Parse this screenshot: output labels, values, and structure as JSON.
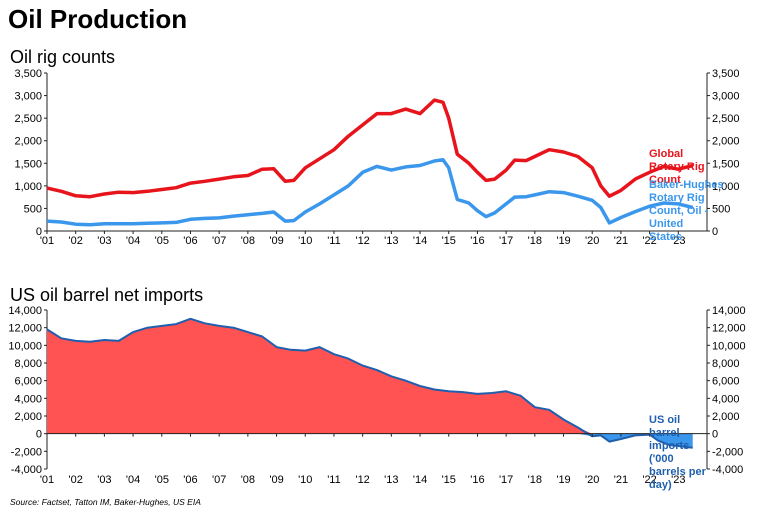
{
  "page": {
    "title": "Oil Production",
    "source": "Source: Factset, Tatton IM, Baker-Hughes, US EIA"
  },
  "chart_data": [
    {
      "type": "line",
      "title": "Oil rig counts",
      "x_tick_labels": [
        "'01",
        "'02",
        "'03",
        "'04",
        "'05",
        "'06",
        "'07",
        "'08",
        "'09",
        "'10",
        "'11",
        "'12",
        "'13",
        "'14",
        "'15",
        "'16",
        "'17",
        "'18",
        "'19",
        "'20",
        "'21",
        "'22",
        "'23"
      ],
      "ylim": [
        0,
        3500
      ],
      "y_ticks": [
        "0",
        "500",
        "1,000",
        "1,500",
        "2,000",
        "2,500",
        "3,000",
        "3,500"
      ],
      "grid": false,
      "legend": "right",
      "series": [
        {
          "name": "Global Rotary Rig Count",
          "color": "#e8141c",
          "points": [
            [
              2001.0,
              950
            ],
            [
              2001.5,
              880
            ],
            [
              2002.0,
              780
            ],
            [
              2002.5,
              760
            ],
            [
              2003.0,
              820
            ],
            [
              2003.5,
              860
            ],
            [
              2004.0,
              850
            ],
            [
              2004.5,
              880
            ],
            [
              2005.0,
              920
            ],
            [
              2005.5,
              960
            ],
            [
              2006.0,
              1060
            ],
            [
              2006.5,
              1100
            ],
            [
              2007.0,
              1150
            ],
            [
              2007.5,
              1200
            ],
            [
              2008.0,
              1230
            ],
            [
              2008.5,
              1370
            ],
            [
              2008.9,
              1380
            ],
            [
              2009.3,
              1100
            ],
            [
              2009.6,
              1120
            ],
            [
              2010.0,
              1400
            ],
            [
              2010.5,
              1600
            ],
            [
              2011.0,
              1800
            ],
            [
              2011.5,
              2100
            ],
            [
              2012.0,
              2350
            ],
            [
              2012.5,
              2600
            ],
            [
              2013.0,
              2600
            ],
            [
              2013.5,
              2700
            ],
            [
              2014.0,
              2600
            ],
            [
              2014.5,
              2900
            ],
            [
              2014.8,
              2850
            ],
            [
              2015.0,
              2500
            ],
            [
              2015.3,
              1700
            ],
            [
              2015.7,
              1500
            ],
            [
              2016.0,
              1300
            ],
            [
              2016.3,
              1120
            ],
            [
              2016.6,
              1150
            ],
            [
              2017.0,
              1350
            ],
            [
              2017.3,
              1570
            ],
            [
              2017.7,
              1560
            ],
            [
              2018.0,
              1650
            ],
            [
              2018.5,
              1800
            ],
            [
              2019.0,
              1750
            ],
            [
              2019.5,
              1650
            ],
            [
              2020.0,
              1400
            ],
            [
              2020.3,
              1000
            ],
            [
              2020.6,
              770
            ],
            [
              2021.0,
              900
            ],
            [
              2021.5,
              1150
            ],
            [
              2022.0,
              1300
            ],
            [
              2022.5,
              1430
            ],
            [
              2023.0,
              1370
            ],
            [
              2023.5,
              1450
            ]
          ]
        },
        {
          "name": "Baker-Hughes Rotary Rig Count, Oil - United States",
          "color": "#3a97ec",
          "points": [
            [
              2001.0,
              220
            ],
            [
              2001.5,
              200
            ],
            [
              2002.0,
              150
            ],
            [
              2002.5,
              140
            ],
            [
              2003.0,
              160
            ],
            [
              2003.5,
              160
            ],
            [
              2004.0,
              160
            ],
            [
              2004.5,
              170
            ],
            [
              2005.0,
              180
            ],
            [
              2005.5,
              190
            ],
            [
              2006.0,
              260
            ],
            [
              2006.5,
              280
            ],
            [
              2007.0,
              290
            ],
            [
              2007.5,
              330
            ],
            [
              2008.0,
              360
            ],
            [
              2008.5,
              390
            ],
            [
              2008.9,
              420
            ],
            [
              2009.3,
              220
            ],
            [
              2009.6,
              230
            ],
            [
              2010.0,
              420
            ],
            [
              2010.5,
              600
            ],
            [
              2011.0,
              800
            ],
            [
              2011.5,
              1000
            ],
            [
              2012.0,
              1300
            ],
            [
              2012.5,
              1430
            ],
            [
              2013.0,
              1350
            ],
            [
              2013.5,
              1420
            ],
            [
              2014.0,
              1450
            ],
            [
              2014.5,
              1550
            ],
            [
              2014.8,
              1580
            ],
            [
              2015.0,
              1400
            ],
            [
              2015.3,
              700
            ],
            [
              2015.7,
              620
            ],
            [
              2016.0,
              450
            ],
            [
              2016.3,
              320
            ],
            [
              2016.6,
              400
            ],
            [
              2017.0,
              600
            ],
            [
              2017.3,
              750
            ],
            [
              2017.7,
              760
            ],
            [
              2018.0,
              800
            ],
            [
              2018.5,
              870
            ],
            [
              2019.0,
              850
            ],
            [
              2019.5,
              770
            ],
            [
              2020.0,
              680
            ],
            [
              2020.3,
              520
            ],
            [
              2020.6,
              180
            ],
            [
              2021.0,
              300
            ],
            [
              2021.5,
              430
            ],
            [
              2022.0,
              550
            ],
            [
              2022.5,
              620
            ],
            [
              2023.0,
              600
            ],
            [
              2023.5,
              520
            ]
          ]
        }
      ]
    },
    {
      "type": "area",
      "title": "US oil barrel net imports",
      "x_tick_labels": [
        "'01",
        "'02",
        "'03",
        "'04",
        "'05",
        "'06",
        "'07",
        "'08",
        "'09",
        "'10",
        "'11",
        "'12",
        "'13",
        "'14",
        "'15",
        "'16",
        "'17",
        "'18",
        "'19",
        "'20",
        "'21",
        "'22",
        "'23"
      ],
      "ylim": [
        -4000,
        14000
      ],
      "y_ticks": [
        "-4,000",
        "-2,000",
        "0",
        "2,000",
        "4,000",
        "6,000",
        "8,000",
        "10,000",
        "12,000",
        "14,000"
      ],
      "grid": false,
      "legend": "right",
      "positive_fill": "#ff5252",
      "negative_fill": "#3a97ec",
      "series": [
        {
          "name": "US oil barrel imports ('000 barrels per day)",
          "color": "#1f5fae",
          "points": [
            [
              2001.0,
              11800
            ],
            [
              2001.5,
              10800
            ],
            [
              2002.0,
              10500
            ],
            [
              2002.5,
              10400
            ],
            [
              2003.0,
              10600
            ],
            [
              2003.5,
              10500
            ],
            [
              2004.0,
              11500
            ],
            [
              2004.5,
              12000
            ],
            [
              2005.0,
              12200
            ],
            [
              2005.5,
              12400
            ],
            [
              2006.0,
              13000
            ],
            [
              2006.5,
              12500
            ],
            [
              2007.0,
              12200
            ],
            [
              2007.5,
              12000
            ],
            [
              2008.0,
              11500
            ],
            [
              2008.5,
              11000
            ],
            [
              2009.0,
              9800
            ],
            [
              2009.5,
              9500
            ],
            [
              2010.0,
              9400
            ],
            [
              2010.5,
              9800
            ],
            [
              2011.0,
              9000
            ],
            [
              2011.5,
              8500
            ],
            [
              2012.0,
              7700
            ],
            [
              2012.5,
              7200
            ],
            [
              2013.0,
              6500
            ],
            [
              2013.5,
              6000
            ],
            [
              2014.0,
              5400
            ],
            [
              2014.5,
              5000
            ],
            [
              2015.0,
              4800
            ],
            [
              2015.5,
              4700
            ],
            [
              2016.0,
              4500
            ],
            [
              2016.5,
              4600
            ],
            [
              2017.0,
              4800
            ],
            [
              2017.5,
              4300
            ],
            [
              2018.0,
              3000
            ],
            [
              2018.5,
              2700
            ],
            [
              2019.0,
              1600
            ],
            [
              2019.5,
              700
            ],
            [
              2020.0,
              -300
            ],
            [
              2020.3,
              -200
            ],
            [
              2020.6,
              -900
            ],
            [
              2021.0,
              -600
            ],
            [
              2021.5,
              -200
            ],
            [
              2022.0,
              -100
            ],
            [
              2022.3,
              -800
            ],
            [
              2022.7,
              -1300
            ],
            [
              2023.0,
              -1400
            ],
            [
              2023.5,
              -1600
            ]
          ]
        }
      ]
    }
  ]
}
